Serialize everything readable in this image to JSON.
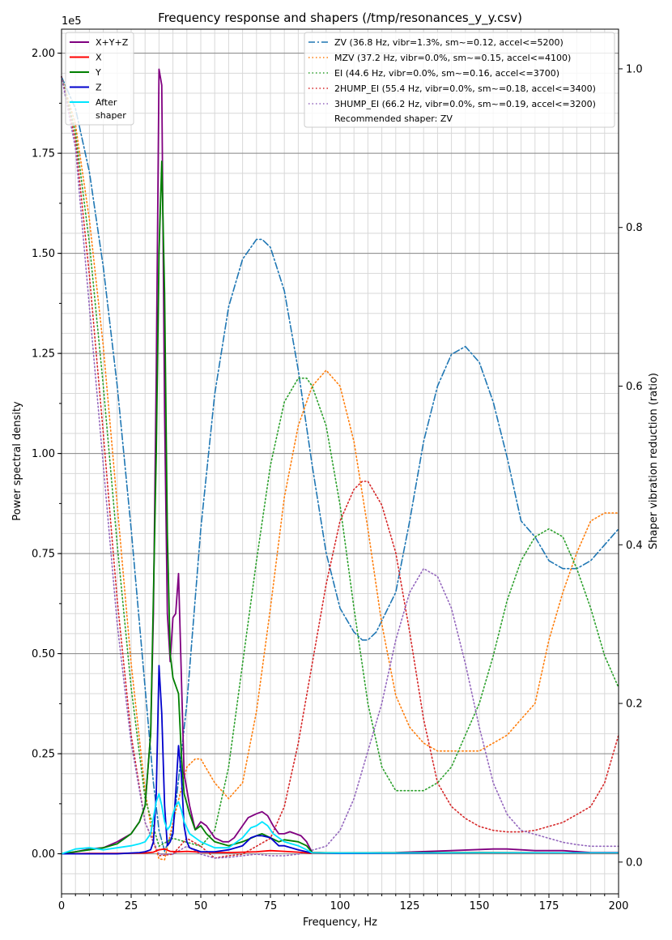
{
  "chart_data": {
    "type": "line",
    "title": "Frequency response and shapers (/tmp/resonances_y_y.csv)",
    "xlabel": "Frequency, Hz",
    "ylabel": "Power spectral density",
    "y2label": "Shaper vibration reduction (ratio)",
    "y_offset_label": "1e5",
    "xlim": [
      0,
      200
    ],
    "ylim": [
      -0.1,
      2.06
    ],
    "y2lim": [
      -0.04,
      1.05
    ],
    "x_ticks": [
      0,
      25,
      50,
      75,
      100,
      125,
      150,
      175,
      200
    ],
    "y_ticks": [
      "0.00",
      "0.25",
      "0.50",
      "0.75",
      "1.00",
      "1.25",
      "1.50",
      "1.75",
      "2.00"
    ],
    "y_tick_values": [
      0,
      0.25,
      0.5,
      0.75,
      1.0,
      1.25,
      1.5,
      1.75,
      2.0
    ],
    "y2_ticks": [
      "0.0",
      "0.2",
      "0.4",
      "0.6",
      "0.8",
      "1.0"
    ],
    "y2_tick_values": [
      0,
      0.2,
      0.4,
      0.6,
      0.8,
      1.0
    ],
    "grid": true,
    "psd_series": [
      {
        "name": "X+Y+Z",
        "color": "#800080",
        "x": [
          0,
          5,
          10,
          15,
          20,
          25,
          28,
          30,
          32,
          33,
          34,
          35,
          36,
          37,
          38,
          39,
          40,
          41,
          42,
          43,
          44,
          46,
          48,
          50,
          52,
          55,
          58,
          60,
          62,
          65,
          67,
          70,
          72,
          74,
          76,
          78,
          80,
          82,
          84,
          86,
          88,
          90,
          100,
          120,
          140,
          155,
          160,
          170,
          180,
          190,
          200
        ],
        "y": [
          0,
          0.005,
          0.012,
          0.015,
          0.03,
          0.05,
          0.08,
          0.12,
          0.3,
          0.6,
          1.2,
          1.96,
          1.92,
          1.1,
          0.6,
          0.48,
          0.59,
          0.6,
          0.7,
          0.45,
          0.2,
          0.12,
          0.06,
          0.08,
          0.07,
          0.04,
          0.03,
          0.03,
          0.04,
          0.07,
          0.09,
          0.1,
          0.105,
          0.095,
          0.07,
          0.05,
          0.05,
          0.055,
          0.05,
          0.045,
          0.03,
          0.003,
          0.002,
          0.003,
          0.008,
          0.012,
          0.012,
          0.008,
          0.008,
          0.003,
          0.003
        ]
      },
      {
        "name": "X",
        "color": "#ff0000",
        "x": [
          0,
          10,
          20,
          30,
          33,
          35,
          37,
          39,
          42,
          45,
          50,
          55,
          60,
          70,
          75,
          80,
          85,
          90,
          100,
          150,
          200
        ],
        "y": [
          0,
          0.001,
          0.001,
          0.002,
          0.004,
          0.01,
          0.012,
          0.006,
          0.005,
          0.006,
          0.004,
          0.003,
          0.003,
          0.005,
          0.008,
          0.006,
          0.004,
          0.001,
          0.001,
          0.001,
          0.001
        ]
      },
      {
        "name": "Y",
        "color": "#008000",
        "x": [
          0,
          5,
          10,
          15,
          20,
          25,
          28,
          30,
          32,
          34,
          35,
          36,
          37,
          38,
          39,
          40,
          41,
          42,
          43,
          44,
          46,
          48,
          50,
          52,
          55,
          60,
          65,
          70,
          72,
          75,
          78,
          80,
          85,
          88,
          90,
          100,
          150,
          200
        ],
        "y": [
          0,
          0.005,
          0.01,
          0.015,
          0.025,
          0.05,
          0.08,
          0.12,
          0.3,
          1.0,
          1.5,
          1.73,
          1.4,
          0.8,
          0.5,
          0.44,
          0.42,
          0.4,
          0.25,
          0.15,
          0.1,
          0.06,
          0.07,
          0.05,
          0.03,
          0.02,
          0.03,
          0.045,
          0.05,
          0.04,
          0.03,
          0.035,
          0.03,
          0.02,
          0.003,
          0.002,
          0.003,
          0.002
        ]
      },
      {
        "name": "Z",
        "color": "#0000cc",
        "x": [
          0,
          10,
          20,
          25,
          28,
          30,
          32,
          33,
          34,
          35,
          36,
          37,
          38,
          39,
          40,
          41,
          42,
          43,
          44,
          45,
          46,
          48,
          50,
          55,
          60,
          65,
          68,
          70,
          72,
          75,
          78,
          80,
          85,
          88,
          90,
          100,
          150,
          200
        ],
        "y": [
          0,
          0,
          0,
          0.002,
          0.003,
          0.005,
          0.01,
          0.03,
          0.15,
          0.47,
          0.35,
          0.12,
          0.02,
          0.03,
          0.05,
          0.15,
          0.27,
          0.2,
          0.07,
          0.03,
          0.015,
          0.01,
          0.005,
          0.005,
          0.01,
          0.02,
          0.04,
          0.045,
          0.045,
          0.04,
          0.02,
          0.02,
          0.01,
          0.005,
          0.002,
          0.001,
          0.002,
          0.002
        ]
      },
      {
        "name": "After\nshaper",
        "color": "#00e5ff",
        "x": [
          0,
          5,
          10,
          15,
          20,
          25,
          28,
          30,
          32,
          33,
          34,
          35,
          36,
          37,
          38,
          39,
          40,
          41,
          42,
          43,
          44,
          46,
          48,
          50,
          55,
          60,
          65,
          68,
          70,
          72,
          74,
          76,
          80,
          85,
          88,
          90,
          100,
          150,
          200
        ],
        "y": [
          0,
          0.012,
          0.015,
          0.01,
          0.015,
          0.02,
          0.025,
          0.03,
          0.05,
          0.09,
          0.13,
          0.15,
          0.12,
          0.08,
          0.06,
          0.07,
          0.1,
          0.12,
          0.13,
          0.11,
          0.08,
          0.05,
          0.04,
          0.03,
          0.015,
          0.015,
          0.04,
          0.065,
          0.07,
          0.08,
          0.07,
          0.05,
          0.03,
          0.02,
          0.01,
          0.002,
          0.002,
          0.002,
          0.002
        ]
      }
    ],
    "shaper_series": [
      {
        "name": "ZV (36.8 Hz, vibr=1.3%, sm~=0.12, accel<=5200)",
        "color": "#1f77b4",
        "dash": "dashdot",
        "x": [
          0,
          5,
          10,
          15,
          20,
          25,
          30,
          33,
          35,
          37,
          40,
          45,
          50,
          55,
          60,
          65,
          70,
          72,
          75,
          80,
          85,
          90,
          95,
          100,
          105,
          108,
          110,
          113,
          120,
          125,
          130,
          135,
          140,
          145,
          150,
          155,
          160,
          165,
          170,
          175,
          180,
          185,
          190,
          195,
          200
        ],
        "y": [
          0.99,
          0.95,
          0.87,
          0.75,
          0.6,
          0.42,
          0.22,
          0.1,
          0.04,
          0.014,
          0.04,
          0.2,
          0.42,
          0.59,
          0.7,
          0.76,
          0.785,
          0.785,
          0.775,
          0.72,
          0.62,
          0.5,
          0.39,
          0.32,
          0.29,
          0.28,
          0.28,
          0.29,
          0.34,
          0.43,
          0.53,
          0.6,
          0.64,
          0.65,
          0.63,
          0.58,
          0.51,
          0.43,
          0.41,
          0.38,
          0.37,
          0.37,
          0.38,
          0.4,
          0.42
        ]
      },
      {
        "name": "MZV (37.2 Hz, vibr=0.0%, sm~=0.15, accel<=4100)",
        "color": "#ff7f0e",
        "dash": "dotted",
        "x": [
          0,
          5,
          10,
          15,
          20,
          25,
          30,
          33,
          35,
          37,
          40,
          45,
          48,
          50,
          55,
          60,
          65,
          70,
          75,
          80,
          85,
          90,
          95,
          100,
          105,
          110,
          115,
          120,
          125,
          130,
          135,
          140,
          145,
          150,
          155,
          160,
          165,
          170,
          175,
          180,
          185,
          190,
          195,
          200
        ],
        "y": [
          0.99,
          0.93,
          0.81,
          0.65,
          0.45,
          0.25,
          0.09,
          0.025,
          0.004,
          0.003,
          0.05,
          0.12,
          0.13,
          0.13,
          0.1,
          0.08,
          0.1,
          0.19,
          0.32,
          0.46,
          0.55,
          0.6,
          0.62,
          0.6,
          0.53,
          0.42,
          0.3,
          0.21,
          0.17,
          0.15,
          0.14,
          0.14,
          0.14,
          0.14,
          0.15,
          0.16,
          0.18,
          0.2,
          0.28,
          0.34,
          0.39,
          0.43,
          0.44,
          0.44
        ]
      },
      {
        "name": "EI (44.6 Hz, vibr=0.0%, sm~=0.16, accel<=3700)",
        "color": "#2ca02c",
        "dash": "dotted",
        "x": [
          0,
          5,
          10,
          15,
          20,
          25,
          30,
          35,
          40,
          45,
          50,
          55,
          60,
          65,
          70,
          75,
          80,
          85,
          88,
          90,
          95,
          100,
          105,
          110,
          115,
          120,
          125,
          130,
          135,
          140,
          145,
          150,
          155,
          160,
          165,
          170,
          175,
          180,
          185,
          190,
          195,
          200
        ],
        "y": [
          0.99,
          0.92,
          0.78,
          0.6,
          0.4,
          0.22,
          0.08,
          0.02,
          0.03,
          0.025,
          0.02,
          0.04,
          0.12,
          0.25,
          0.38,
          0.5,
          0.58,
          0.61,
          0.61,
          0.6,
          0.55,
          0.45,
          0.32,
          0.2,
          0.12,
          0.09,
          0.09,
          0.09,
          0.1,
          0.12,
          0.16,
          0.2,
          0.26,
          0.33,
          0.38,
          0.41,
          0.42,
          0.41,
          0.37,
          0.32,
          0.26,
          0.22
        ]
      },
      {
        "name": "2HUMP_EI (55.4 Hz, vibr=0.0%, sm~=0.18, accel<=3400)",
        "color": "#d62728",
        "dash": "dotted",
        "x": [
          0,
          5,
          10,
          15,
          20,
          25,
          30,
          35,
          40,
          45,
          50,
          55,
          60,
          65,
          70,
          75,
          80,
          85,
          90,
          95,
          100,
          105,
          108,
          110,
          115,
          120,
          125,
          130,
          135,
          140,
          145,
          150,
          155,
          160,
          165,
          170,
          175,
          180,
          185,
          190,
          195,
          200
        ],
        "y": [
          0.99,
          0.91,
          0.74,
          0.54,
          0.33,
          0.16,
          0.05,
          0.008,
          0.01,
          0.03,
          0.02,
          0.005,
          0.008,
          0.01,
          0.02,
          0.03,
          0.07,
          0.15,
          0.25,
          0.35,
          0.43,
          0.47,
          0.48,
          0.48,
          0.45,
          0.39,
          0.29,
          0.18,
          0.1,
          0.07,
          0.055,
          0.045,
          0.04,
          0.038,
          0.038,
          0.04,
          0.045,
          0.05,
          0.06,
          0.07,
          0.1,
          0.16
        ]
      },
      {
        "name": "3HUMP_EI (66.2 Hz, vibr=0.0%, sm~=0.19, accel<=3200)",
        "color": "#9467bd",
        "dash": "dotted",
        "x": [
          0,
          5,
          10,
          15,
          20,
          25,
          30,
          35,
          40,
          45,
          50,
          55,
          60,
          65,
          70,
          75,
          80,
          85,
          90,
          95,
          100,
          105,
          110,
          115,
          120,
          125,
          130,
          135,
          140,
          145,
          150,
          155,
          160,
          165,
          170,
          175,
          180,
          185,
          190,
          195,
          200
        ],
        "y": [
          0.99,
          0.9,
          0.7,
          0.5,
          0.3,
          0.15,
          0.05,
          0.01,
          0.01,
          0.02,
          0.01,
          0.005,
          0.006,
          0.008,
          0.01,
          0.008,
          0.008,
          0.01,
          0.015,
          0.02,
          0.04,
          0.08,
          0.14,
          0.2,
          0.28,
          0.34,
          0.37,
          0.36,
          0.32,
          0.25,
          0.17,
          0.1,
          0.06,
          0.04,
          0.035,
          0.03,
          0.025,
          0.022,
          0.02,
          0.02,
          0.02
        ]
      }
    ],
    "legend_left": [
      "X+Y+Z",
      "X",
      "Y",
      "Z",
      "After",
      "shaper"
    ],
    "legend_right_note": "Recommended shaper: ZV"
  }
}
